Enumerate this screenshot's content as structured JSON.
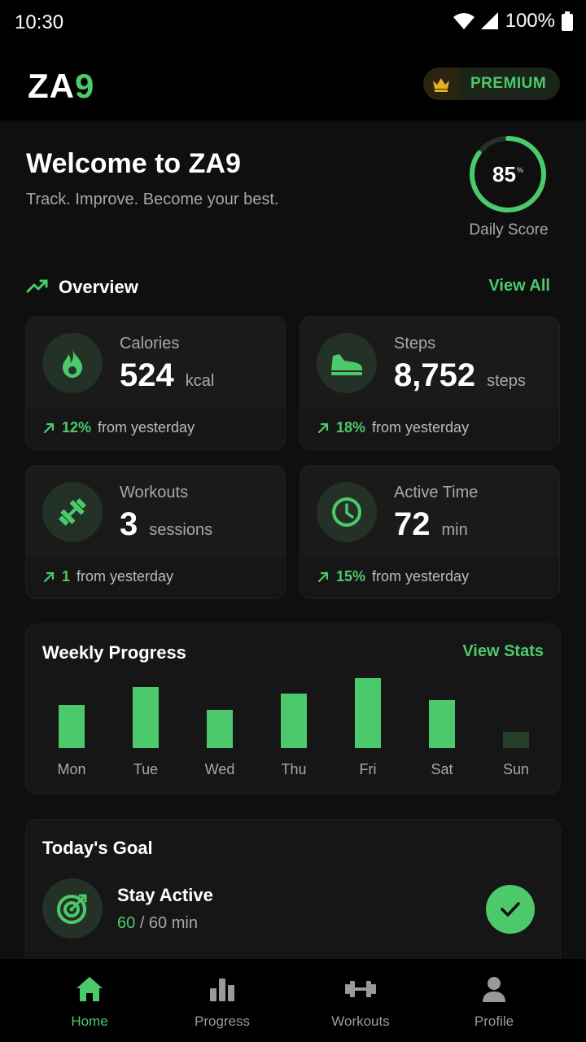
{
  "status": {
    "time": "10:30",
    "battery": "100%"
  },
  "brand": {
    "logo_main": "ZA",
    "logo_accent": "9",
    "premium_label": "PREMIUM"
  },
  "welcome": {
    "title": "Welcome to ZA9",
    "subtitle": "Track. Improve. Become your best."
  },
  "score": {
    "value": "85",
    "suffix": "%",
    "label": "Daily Score",
    "fraction": 0.85
  },
  "overview": {
    "title": "Overview",
    "link": "View All"
  },
  "cards": [
    {
      "label": "Calories",
      "value": "524",
      "unit": "kcal",
      "trend_pct": "12%",
      "trend_text": "from yesterday",
      "icon": "flame-icon"
    },
    {
      "label": "Steps",
      "value": "8,752",
      "unit": "steps",
      "trend_pct": "18%",
      "trend_text": "from yesterday",
      "icon": "shoe-icon"
    },
    {
      "label": "Workouts",
      "value": "3",
      "unit": "sessions",
      "trend_pct": "1",
      "trend_text": "from yesterday",
      "icon": "dumbbell-icon"
    },
    {
      "label": "Active Time",
      "value": "72",
      "unit": "min",
      "trend_pct": "15%",
      "trend_text": "from yesterday",
      "icon": "clock-icon"
    }
  ],
  "weekly": {
    "title": "Weekly Progress",
    "link": "View Stats",
    "chart_data": {
      "type": "bar",
      "categories": [
        "Mon",
        "Tue",
        "Wed",
        "Thu",
        "Fri",
        "Sat",
        "Sun"
      ],
      "values": [
        53,
        75,
        47,
        67,
        86,
        59,
        20
      ],
      "ylim": [
        0,
        100
      ],
      "colors": {
        "bar": "#4cca6b",
        "bar_muted": "#24402b"
      }
    }
  },
  "goal": {
    "title": "Today's Goal",
    "name": "Stay Active",
    "current": "60",
    "target": "/ 60 min",
    "completed": true
  },
  "nav": [
    {
      "label": "Home",
      "active": true
    },
    {
      "label": "Progress",
      "active": false
    },
    {
      "label": "Workouts",
      "active": false
    },
    {
      "label": "Profile",
      "active": false
    }
  ],
  "colors": {
    "accent": "#4cca6b",
    "background": "#0f0f0f",
    "card": "#1a1a1a"
  }
}
